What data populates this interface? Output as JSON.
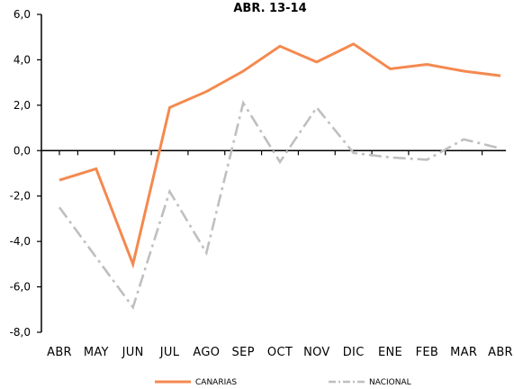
{
  "chart_data": {
    "type": "line",
    "title": "ABR. 13-14",
    "categories": [
      "ABR",
      "MAY",
      "JUN",
      "JUL",
      "AGO",
      "SEP",
      "OCT",
      "NOV",
      "DIC",
      "ENE",
      "FEB",
      "MAR",
      "ABR"
    ],
    "ylim": [
      -8.0,
      6.0
    ],
    "yticks": [
      "6,0",
      "4,0",
      "2,0",
      "0,0",
      "-2,0",
      "-4,0",
      "-6,0",
      "-8,0"
    ],
    "ytick_values": [
      6,
      4,
      2,
      0,
      -2,
      -4,
      -6,
      -8
    ],
    "legend_position": "bottom",
    "series": [
      {
        "name": "CANARIAS",
        "color": "#f4894f",
        "style": "solid",
        "values": [
          -1.3,
          -0.8,
          -5.0,
          1.9,
          2.6,
          3.5,
          4.6,
          3.9,
          4.7,
          3.6,
          3.8,
          3.5,
          3.3
        ]
      },
      {
        "name": "NACIONAL",
        "color": "#bfbfbf",
        "style": "dash-dot",
        "values": [
          -2.5,
          -4.7,
          -6.9,
          -1.8,
          -4.5,
          2.1,
          -0.5,
          1.9,
          -0.1,
          -0.3,
          -0.4,
          0.5,
          0.1
        ]
      }
    ]
  }
}
